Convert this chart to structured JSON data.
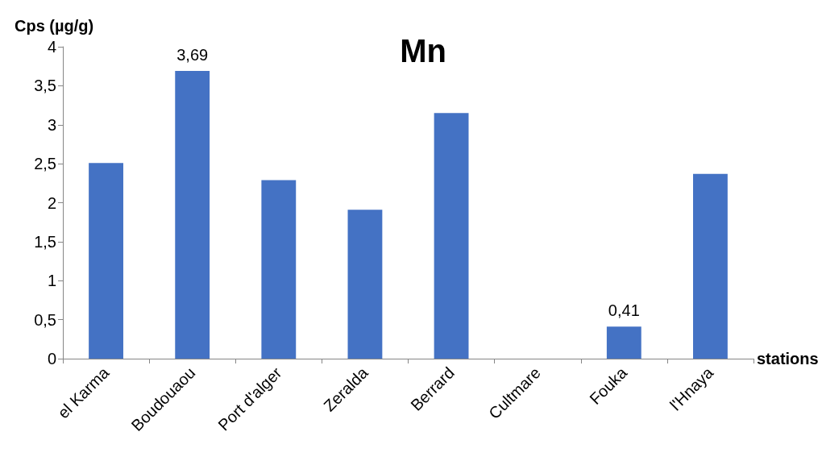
{
  "chart_data": {
    "type": "bar",
    "title": "Mn",
    "xlabel": "stations",
    "ylabel": "Cps (µg/g)",
    "categories": [
      "el Karma",
      "Boudouaou",
      "Port d'alger",
      "Zeralda",
      "Berrard",
      "Cultmare",
      "Fouka",
      "l'Hnaya"
    ],
    "values": [
      2.51,
      3.69,
      2.29,
      1.91,
      3.15,
      null,
      0.41,
      2.37
    ],
    "value_labels": [
      null,
      "3,69",
      null,
      null,
      null,
      null,
      "0,41",
      null
    ],
    "color": "#4472c4",
    "ylim": [
      0,
      4
    ],
    "yticks": [
      0,
      {
        "value": 0.5,
        "label": "0,5"
      },
      1,
      {
        "value": 1.5,
        "label": "1,5"
      },
      2,
      {
        "value": 2.5,
        "label": "2,5"
      },
      3,
      {
        "value": 3.5,
        "label": "3,5"
      },
      4
    ],
    "grid": false
  }
}
